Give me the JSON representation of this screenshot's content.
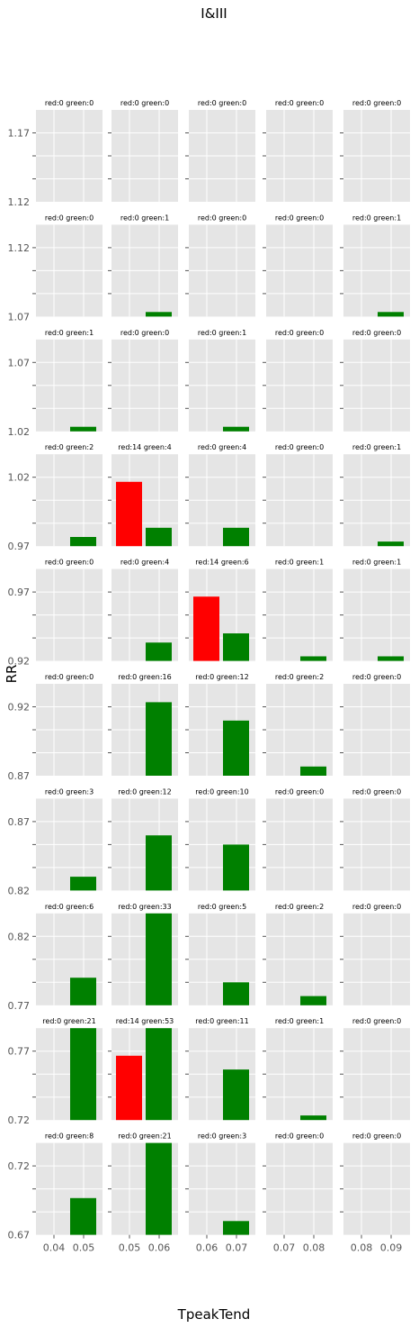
{
  "figure": {
    "title": "I&III",
    "xlabel": "TpeakTend",
    "ylabel": "RR"
  },
  "colors": {
    "red": "#ff0000",
    "green": "#008000",
    "panel_bg": "#e5e5e5",
    "grid": "#ffffff",
    "text": "#555555"
  },
  "chart_data": {
    "type": "bar",
    "layout": "facet grid 10 rows x 5 columns, bar height = count",
    "grid_on": true,
    "row_ylims": [
      [
        1.12,
        1.17
      ],
      [
        1.07,
        1.12
      ],
      [
        1.02,
        1.07
      ],
      [
        0.97,
        1.02
      ],
      [
        0.92,
        0.97
      ],
      [
        0.87,
        0.92
      ],
      [
        0.82,
        0.87
      ],
      [
        0.77,
        0.82
      ],
      [
        0.72,
        0.77
      ],
      [
        0.67,
        0.72
      ]
    ],
    "row_ytick_labels": [
      [
        "1.17",
        "1.12"
      ],
      [
        "1.12",
        "1.07"
      ],
      [
        "1.07",
        "1.02"
      ],
      [
        "1.02",
        "0.97"
      ],
      [
        "0.97",
        "0.92"
      ],
      [
        "0.92",
        "0.87"
      ],
      [
        "0.87",
        "0.82"
      ],
      [
        "0.82",
        "0.77"
      ],
      [
        "0.77",
        "0.72"
      ],
      [
        "0.72",
        "0.67"
      ]
    ],
    "column_xtick_labels": [
      [
        "0.04",
        "0.05"
      ],
      [
        "0.05",
        "0.06"
      ],
      [
        "0.06",
        "0.07"
      ],
      [
        "0.07",
        "0.08"
      ],
      [
        "0.08",
        "0.09"
      ]
    ],
    "count_scale_max": 20,
    "cells": [
      [
        {
          "title": "red:0 green:0",
          "red": 0,
          "green": 0
        },
        {
          "title": "red:0 green:0",
          "red": 0,
          "green": 0
        },
        {
          "title": "red:0 green:0",
          "red": 0,
          "green": 0
        },
        {
          "title": "red:0 green:0",
          "red": 0,
          "green": 0
        },
        {
          "title": "red:0 green:0",
          "red": 0,
          "green": 0
        }
      ],
      [
        {
          "title": "red:0 green:0",
          "red": 0,
          "green": 0
        },
        {
          "title": "red:0 green:1",
          "red": 0,
          "green": 1
        },
        {
          "title": "red:0 green:0",
          "red": 0,
          "green": 0
        },
        {
          "title": "red:0 green:0",
          "red": 0,
          "green": 0
        },
        {
          "title": "red:0 green:1",
          "red": 0,
          "green": 1
        }
      ],
      [
        {
          "title": "red:0 green:1",
          "red": 0,
          "green": 1
        },
        {
          "title": "red:0 green:0",
          "red": 0,
          "green": 0
        },
        {
          "title": "red:0 green:1",
          "red": 0,
          "green": 1
        },
        {
          "title": "red:0 green:0",
          "red": 0,
          "green": 0
        },
        {
          "title": "red:0 green:0",
          "red": 0,
          "green": 0
        }
      ],
      [
        {
          "title": "red:0 green:2",
          "red": 0,
          "green": 2
        },
        {
          "title": "red:14 green:4",
          "red": 14,
          "green": 4
        },
        {
          "title": "red:0 green:4",
          "red": 0,
          "green": 4
        },
        {
          "title": "red:0 green:0",
          "red": 0,
          "green": 0
        },
        {
          "title": "red:0 green:1",
          "red": 0,
          "green": 1
        }
      ],
      [
        {
          "title": "red:0 green:0",
          "red": 0,
          "green": 0
        },
        {
          "title": "red:0 green:4",
          "red": 0,
          "green": 4
        },
        {
          "title": "red:14 green:6",
          "red": 14,
          "green": 6
        },
        {
          "title": "red:0 green:1",
          "red": 0,
          "green": 1
        },
        {
          "title": "red:0 green:1",
          "red": 0,
          "green": 1
        }
      ],
      [
        {
          "title": "red:0 green:0",
          "red": 0,
          "green": 0
        },
        {
          "title": "red:0 green:16",
          "red": 0,
          "green": 16
        },
        {
          "title": "red:0 green:12",
          "red": 0,
          "green": 12
        },
        {
          "title": "red:0 green:2",
          "red": 0,
          "green": 2
        },
        {
          "title": "red:0 green:0",
          "red": 0,
          "green": 0
        }
      ],
      [
        {
          "title": "red:0 green:3",
          "red": 0,
          "green": 3
        },
        {
          "title": "red:0 green:12",
          "red": 0,
          "green": 12
        },
        {
          "title": "red:0 green:10",
          "red": 0,
          "green": 10
        },
        {
          "title": "red:0 green:0",
          "red": 0,
          "green": 0
        },
        {
          "title": "red:0 green:0",
          "red": 0,
          "green": 0
        }
      ],
      [
        {
          "title": "red:0 green:6",
          "red": 0,
          "green": 6
        },
        {
          "title": "red:0 green:33",
          "red": 0,
          "green": 33
        },
        {
          "title": "red:0 green:5",
          "red": 0,
          "green": 5
        },
        {
          "title": "red:0 green:2",
          "red": 0,
          "green": 2
        },
        {
          "title": "red:0 green:0",
          "red": 0,
          "green": 0
        }
      ],
      [
        {
          "title": "red:0 green:21",
          "red": 0,
          "green": 21
        },
        {
          "title": "red:14 green:53",
          "red": 14,
          "green": 53
        },
        {
          "title": "red:0 green:11",
          "red": 0,
          "green": 11
        },
        {
          "title": "red:0 green:1",
          "red": 0,
          "green": 1
        },
        {
          "title": "red:0 green:0",
          "red": 0,
          "green": 0
        }
      ],
      [
        {
          "title": "red:0 green:8",
          "red": 0,
          "green": 8
        },
        {
          "title": "red:0 green:21",
          "red": 0,
          "green": 21
        },
        {
          "title": "red:0 green:3",
          "red": 0,
          "green": 3
        },
        {
          "title": "red:0 green:0",
          "red": 0,
          "green": 0
        },
        {
          "title": "red:0 green:0",
          "red": 0,
          "green": 0
        }
      ]
    ]
  }
}
